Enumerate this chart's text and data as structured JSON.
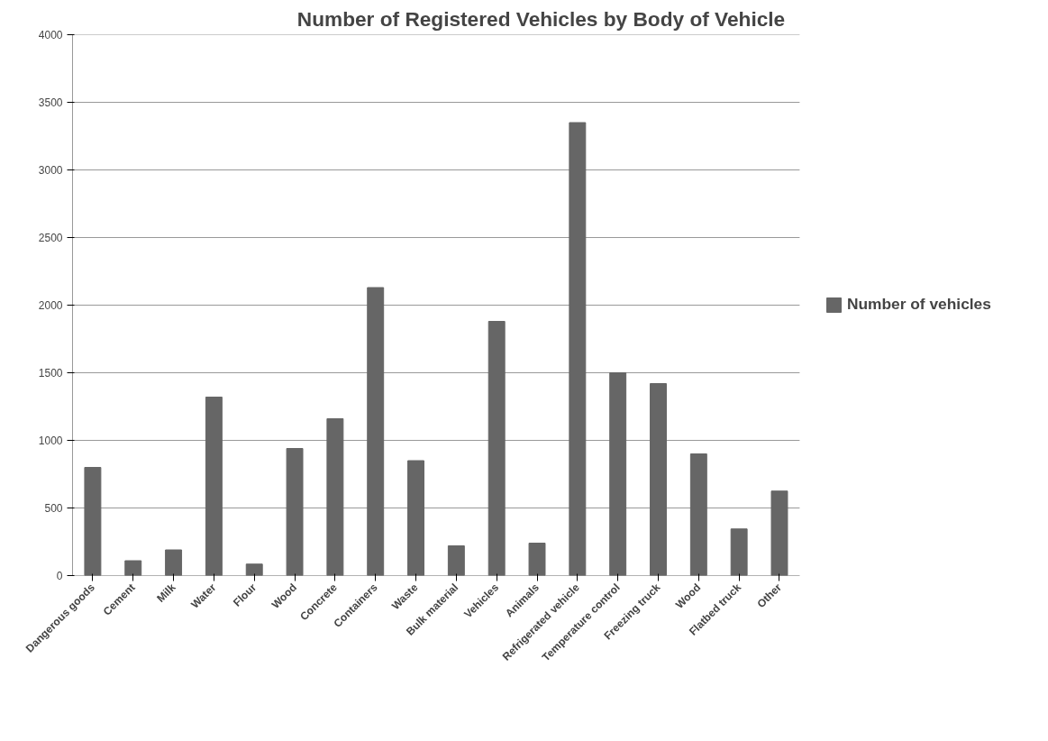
{
  "chart_data": {
    "type": "bar",
    "title": "Number of Registered Vehicles by Body of Vehicle",
    "categories": [
      "Dangerous goods",
      "Cement",
      "Milk",
      "Water",
      "Flour",
      "Wood",
      "Concrete",
      "Containers",
      "Waste",
      "Bulk material",
      "Vehicles",
      "Animals",
      "Refrigerated vehicle",
      "Temperature control",
      "Freezing truck",
      "Wood",
      "Flatbed truck",
      "Other"
    ],
    "series": [
      {
        "name": "Number of vehicles",
        "color": "#666666",
        "values": [
          800,
          110,
          190,
          1320,
          85,
          940,
          1160,
          2130,
          850,
          220,
          1880,
          240,
          3350,
          1500,
          1420,
          900,
          345,
          625
        ]
      }
    ],
    "ylim": [
      0,
      4000
    ],
    "yticks": [
      0,
      500,
      1000,
      1500,
      2000,
      2500,
      3000,
      3500,
      4000
    ],
    "grid": "y",
    "legend": "right"
  }
}
